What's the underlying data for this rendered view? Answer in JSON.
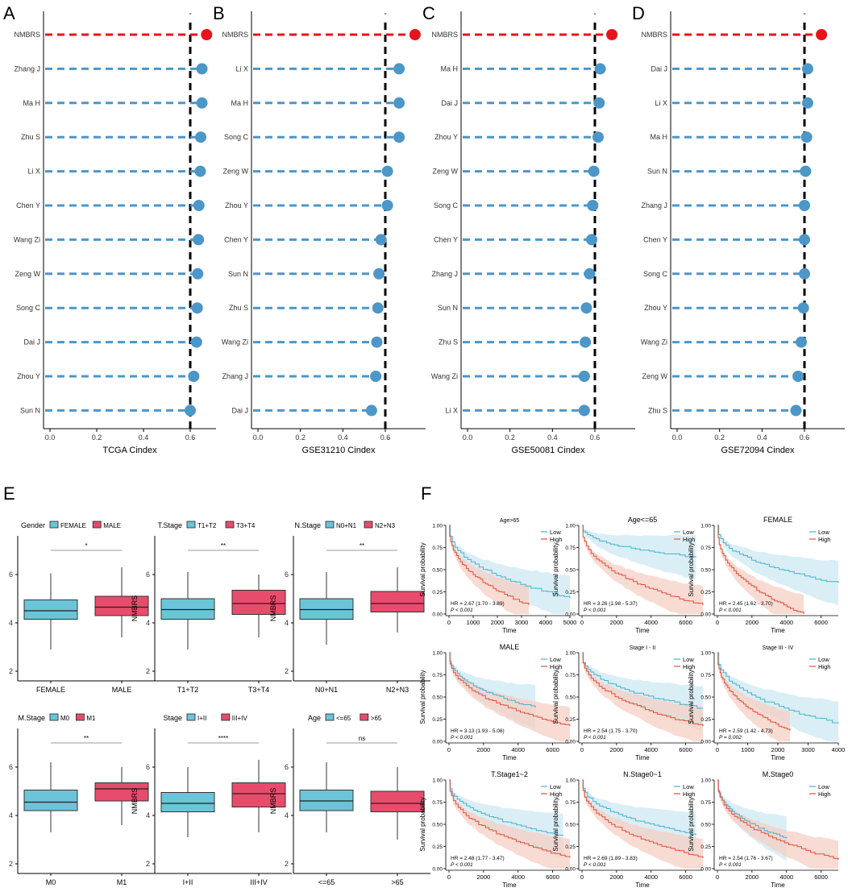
{
  "panel_labels": {
    "A": "A",
    "B": "B",
    "C": "C",
    "D": "D",
    "E": "E",
    "F": "F"
  },
  "colors": {
    "nmbrs": "#e8141c",
    "other": "#4c96c8",
    "ref": "#000000",
    "box_low": "#6cc4d8",
    "box_high": "#e84c6c",
    "km_low": "#4cb0cc",
    "km_high": "#e0503a",
    "km_low_ci": "#cde8f3",
    "km_high_ci": "#f6cfc4"
  },
  "chart_data": [
    {
      "id": "A",
      "type": "scatter",
      "title": "",
      "xlabel": "TCGA Cindex",
      "ylabel": "",
      "xlim": [
        0,
        0.72
      ],
      "xticks": [
        "0.0",
        "0.2",
        "0.4",
        "0.6"
      ],
      "reference_line": 0.6,
      "ref_label": "-",
      "categories": [
        "NMBRS",
        "Zhang J",
        "Ma H",
        "Zhu S",
        "Li X",
        "Chen Y",
        "Wang Zi",
        "Zeng W",
        "Song C",
        "Dai J",
        "Zhou Y",
        "Sun N"
      ],
      "values": [
        0.67,
        0.65,
        0.65,
        0.645,
        0.643,
        0.637,
        0.635,
        0.632,
        0.63,
        0.627,
        0.615,
        0.6
      ]
    },
    {
      "id": "B",
      "type": "scatter",
      "title": "",
      "xlabel": "GSE31210 Cindex",
      "ylabel": "",
      "xlim": [
        -0.02,
        0.72
      ],
      "xticks": [
        "0.0",
        "0.2",
        "0.4",
        "0.6"
      ],
      "reference_line": 0.6,
      "ref_label": "-",
      "categories": [
        "NMBRS",
        "Li X",
        "Ma H",
        "Song C",
        "Zeng W",
        "Zhou Y",
        "Chen Y",
        "Sun N",
        "Zhu S",
        "Wang Zi",
        "Zhang J",
        "Dai J"
      ],
      "values": [
        0.74,
        0.665,
        0.665,
        0.665,
        0.61,
        0.61,
        0.58,
        0.57,
        0.565,
        0.56,
        0.555,
        0.535
      ]
    },
    {
      "id": "C",
      "type": "scatter",
      "title": "",
      "xlabel": "GSE50081 Cindex",
      "ylabel": "",
      "xlim": [
        -0.02,
        0.72
      ],
      "xticks": [
        "0.0",
        "0.2",
        "0.4",
        "0.6"
      ],
      "reference_line": 0.6,
      "ref_label": "-",
      "categories": [
        "NMBRS",
        "Ma H",
        "Dai J",
        "Zhou Y",
        "Zeng W",
        "Song C",
        "Chen Y",
        "Zhang J",
        "Sun N",
        "Zhu S",
        "Wang Zi",
        "Li X"
      ],
      "values": [
        0.68,
        0.625,
        0.62,
        0.615,
        0.595,
        0.59,
        0.585,
        0.575,
        0.56,
        0.555,
        0.55,
        0.55
      ]
    },
    {
      "id": "D",
      "type": "scatter",
      "title": "",
      "xlabel": "GSE72094 Cindex",
      "ylabel": "",
      "xlim": [
        -0.02,
        0.72
      ],
      "xticks": [
        "0.0",
        "0.2",
        "0.4",
        "0.6"
      ],
      "reference_line": 0.6,
      "ref_label": "-",
      "categories": [
        "NMBRS",
        "Dai J",
        "Li X",
        "Ma H",
        "Sun N",
        "Zhang J",
        "Chen Y",
        "Song C",
        "Zhou Y",
        "Wang Zi",
        "Zeng W",
        "Zhu S"
      ],
      "values": [
        0.68,
        0.615,
        0.615,
        0.61,
        0.605,
        0.6,
        0.6,
        0.6,
        0.595,
        0.585,
        0.57,
        0.56
      ]
    },
    {
      "id": "E1",
      "type": "box",
      "legend_title": "Gender",
      "legend": [
        "FEMALE",
        "MALE"
      ],
      "categories": [
        "FEMALE",
        "MALE"
      ],
      "ylabel": "NMBRS",
      "ylim": [
        1.6,
        7.6
      ],
      "yticks": [
        "2",
        "4",
        "6"
      ],
      "significance": "*",
      "boxes": [
        {
          "min": 2.9,
          "q1": 4.15,
          "median": 4.5,
          "q3": 4.95,
          "max": 6.05
        },
        {
          "min": 3.4,
          "q1": 4.3,
          "median": 4.65,
          "q3": 5.1,
          "max": 6.3
        }
      ]
    },
    {
      "id": "E2",
      "type": "box",
      "legend_title": "T.Stage",
      "legend": [
        "T1+T2",
        "T3+T4"
      ],
      "categories": [
        "T1+T2",
        "T3+T4"
      ],
      "ylabel": "NMBRS",
      "ylim": [
        1.6,
        7.6
      ],
      "yticks": [
        "2",
        "4",
        "6"
      ],
      "significance": "**",
      "boxes": [
        {
          "min": 2.9,
          "q1": 4.15,
          "median": 4.55,
          "q3": 5.0,
          "max": 6.1
        },
        {
          "min": 3.4,
          "q1": 4.35,
          "median": 4.8,
          "q3": 5.35,
          "max": 6.0
        }
      ]
    },
    {
      "id": "E3",
      "type": "box",
      "legend_title": "N.Stage",
      "legend": [
        "N0+N1",
        "N2+N3"
      ],
      "categories": [
        "N0+N1",
        "N2+N3"
      ],
      "ylabel": "NMBRS",
      "ylim": [
        1.6,
        7.6
      ],
      "yticks": [
        "2",
        "4",
        "6"
      ],
      "significance": "**",
      "boxes": [
        {
          "min": 3.1,
          "q1": 4.15,
          "median": 4.55,
          "q3": 5.0,
          "max": 6.1
        },
        {
          "min": 3.6,
          "q1": 4.45,
          "median": 4.8,
          "q3": 5.3,
          "max": 6.3
        }
      ]
    },
    {
      "id": "E4",
      "type": "box",
      "legend_title": "M.Stage",
      "legend": [
        "M0",
        "M1"
      ],
      "categories": [
        "M0",
        "M1"
      ],
      "ylabel": "NMBRS",
      "ylim": [
        1.6,
        7.6
      ],
      "yticks": [
        "2",
        "4",
        "6"
      ],
      "significance": "**",
      "boxes": [
        {
          "min": 3.3,
          "q1": 4.2,
          "median": 4.55,
          "q3": 5.05,
          "max": 6.2
        },
        {
          "min": 3.6,
          "q1": 4.6,
          "median": 5.1,
          "q3": 5.35,
          "max": 6.0
        }
      ]
    },
    {
      "id": "E5",
      "type": "box",
      "legend_title": "Stage",
      "legend": [
        "I+II",
        "III+IV"
      ],
      "categories": [
        "I+II",
        "III+IV"
      ],
      "ylabel": "NMBRS",
      "ylim": [
        1.6,
        7.6
      ],
      "yticks": [
        "2",
        "4",
        "6"
      ],
      "significance": "****",
      "boxes": [
        {
          "min": 3.1,
          "q1": 4.15,
          "median": 4.5,
          "q3": 4.95,
          "max": 6.0
        },
        {
          "min": 3.3,
          "q1": 4.35,
          "median": 4.9,
          "q3": 5.35,
          "max": 6.3
        }
      ]
    },
    {
      "id": "E6",
      "type": "box",
      "legend_title": "Age",
      "legend": [
        "<=65",
        ">65"
      ],
      "categories": [
        "<=65",
        ">65"
      ],
      "ylabel": "NMBRS",
      "ylim": [
        1.6,
        7.6
      ],
      "yticks": [
        "2",
        "4",
        "6"
      ],
      "significance": "ns",
      "boxes": [
        {
          "min": 3.3,
          "q1": 4.2,
          "median": 4.6,
          "q3": 5.05,
          "max": 6.2
        },
        {
          "min": 3.0,
          "q1": 4.15,
          "median": 4.5,
          "q3": 5.0,
          "max": 6.0
        }
      ]
    },
    {
      "id": "F1",
      "type": "line",
      "title": "Age>65",
      "xlabel": "Time",
      "ylabel": "Survival probability",
      "xlim": [
        0,
        5000
      ],
      "xticks": [
        "0",
        "1000",
        "2000",
        "3000",
        "4000",
        "5000"
      ],
      "yticks": [
        "0.00",
        "0.25",
        "0.50",
        "0.75",
        "1.00"
      ],
      "legend": [
        "Low",
        "High"
      ],
      "hr": "HR = 2.67 (1.70 - 3.89)",
      "p": "P < 0.001",
      "low_end": 0.18,
      "high_end": 0.1,
      "low_t": 5000,
      "high_t": 3300
    },
    {
      "id": "F2",
      "type": "line",
      "title": "Age<=65",
      "xlabel": "Time",
      "ylabel": "Survival probability",
      "xlim": [
        0,
        7000
      ],
      "xticks": [
        "0",
        "2000",
        "4000",
        "6000"
      ],
      "yticks": [
        "0.00",
        "0.25",
        "0.50",
        "0.75",
        "1.00"
      ],
      "legend": [
        "Low",
        "High"
      ],
      "hr": "HR = 3.26 (1.98 - 5.37)",
      "p": "P < 0.001",
      "low_end": 0.64,
      "high_end": 0.1,
      "low_t": 6600,
      "high_t": 7000
    },
    {
      "id": "F3",
      "type": "line",
      "title": "FEMALE",
      "xlabel": "Time",
      "ylabel": "Survival probability",
      "xlim": [
        0,
        7000
      ],
      "xticks": [
        "0",
        "2000",
        "4000",
        "6000"
      ],
      "yticks": [
        "0.00",
        "0.25",
        "0.50",
        "0.75",
        "1.00"
      ],
      "legend": [
        "Low",
        "High"
      ],
      "hr": "HR = 2.45 (1.62 - 3.70)",
      "p": "P < 0.001",
      "low_end": 0.35,
      "high_end": 0.0,
      "low_t": 7000,
      "high_t": 5000
    },
    {
      "id": "F4",
      "type": "line",
      "title": "MALE",
      "xlabel": "Time",
      "ylabel": "Survival probability",
      "xlim": [
        0,
        7000
      ],
      "xticks": [
        "0",
        "2000",
        "4000",
        "6000"
      ],
      "yticks": [
        "0.00",
        "0.25",
        "0.50",
        "0.75",
        "1.00"
      ],
      "legend": [
        "Low",
        "High"
      ],
      "hr": "HR = 3.13 (1.93 - 5.08)",
      "p": "P < 0.001",
      "low_end": 0.38,
      "high_end": 0.17,
      "low_t": 5000,
      "high_t": 7000
    },
    {
      "id": "F5",
      "type": "line",
      "title": "Stage I - II",
      "xlabel": "Time",
      "ylabel": "Survival probability",
      "xlim": [
        0,
        7000
      ],
      "xticks": [
        "0",
        "2000",
        "4000",
        "6000"
      ],
      "yticks": [
        "0.00",
        "0.25",
        "0.50",
        "0.75",
        "1.00"
      ],
      "legend": [
        "Low",
        "High"
      ],
      "hr": "HR = 2.54 (1.75 - 3.70)",
      "p": "P < 0.001",
      "low_end": 0.37,
      "high_end": 0.17,
      "low_t": 7000,
      "high_t": 7000
    },
    {
      "id": "F6",
      "type": "line",
      "title": "Stage III - IV",
      "xlabel": "Time",
      "ylabel": "Survival probability",
      "xlim": [
        0,
        4000
      ],
      "xticks": [
        "0",
        "1000",
        "2000",
        "3000",
        "4000"
      ],
      "yticks": [
        "0.00",
        "0.25",
        "0.50",
        "0.75",
        "1.00"
      ],
      "legend": [
        "Low",
        "High"
      ],
      "hr": "HR = 2.59 (1.42 - 4.73)",
      "p": "P = 0.002",
      "low_end": 0.2,
      "high_end": 0.12,
      "low_t": 4000,
      "high_t": 2400
    },
    {
      "id": "F7",
      "type": "line",
      "title": "T.Stage1~2",
      "xlabel": "Time",
      "ylabel": "Survival probability",
      "xlim": [
        0,
        7000
      ],
      "xticks": [
        "0",
        "2000",
        "4000",
        "6000"
      ],
      "yticks": [
        "0.00",
        "0.25",
        "0.50",
        "0.75",
        "1.00"
      ],
      "legend": [
        "Low",
        "High"
      ],
      "hr": "HR = 2.48 (1.77 - 3.47)",
      "p": "P < 0.001",
      "low_end": 0.37,
      "high_end": 0.12,
      "low_t": 6600,
      "high_t": 7000
    },
    {
      "id": "F8",
      "type": "line",
      "title": "N.Stage0~1",
      "xlabel": "Time",
      "ylabel": "Survival probability",
      "xlim": [
        0,
        7000
      ],
      "xticks": [
        "0",
        "2000",
        "4000",
        "6000"
      ],
      "yticks": [
        "0.00",
        "0.25",
        "0.50",
        "0.75",
        "1.00"
      ],
      "legend": [
        "Low",
        "High"
      ],
      "hr": "HR = 2.69 (1.89 - 3.83)",
      "p": "P < 0.001",
      "low_end": 0.38,
      "high_end": 0.12,
      "low_t": 6600,
      "high_t": 7000
    },
    {
      "id": "F9",
      "type": "line",
      "title": "M.Stage0",
      "xlabel": "Time",
      "ylabel": "Survival probability",
      "xlim": [
        0,
        7000
      ],
      "xticks": [
        "0",
        "2000",
        "4000",
        "6000"
      ],
      "yticks": [
        "0.00",
        "0.25",
        "0.50",
        "0.75",
        "1.00"
      ],
      "legend": [
        "Low",
        "High"
      ],
      "hr": "HR = 2.54 (1.76 - 3.67)",
      "p": "P < 0.001",
      "low_end": 0.34,
      "high_end": 0.1,
      "low_t": 4000,
      "high_t": 7000
    }
  ]
}
